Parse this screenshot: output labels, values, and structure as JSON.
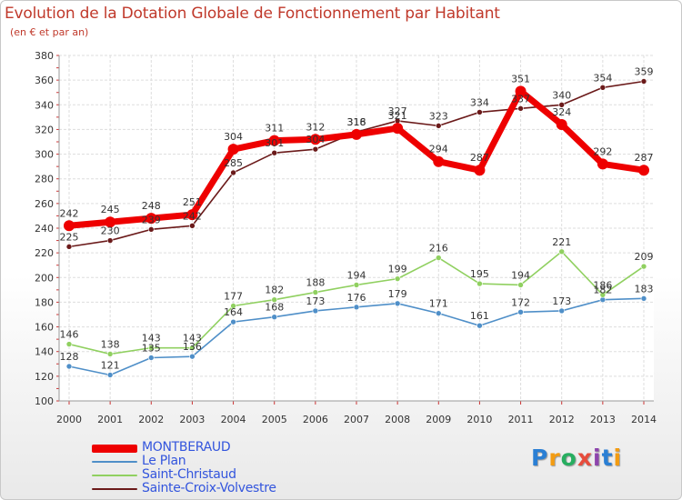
{
  "header": {
    "title": "Evolution de la Dotation Globale de Fonctionnement par Habitant",
    "subtitle": "(en € et par an)"
  },
  "logo": {
    "text": "Proxiti",
    "letters": [
      "P",
      "r",
      "o",
      "x",
      "i",
      "t",
      "i"
    ],
    "colors": [
      "#2a7fd4",
      "#f39c12",
      "#27ae60",
      "#e74c3c",
      "#8e44ad",
      "#2a7fd4",
      "#f39c12"
    ]
  },
  "chart_data": {
    "type": "line",
    "title": "Evolution de la Dotation Globale de Fonctionnement par Habitant",
    "subtitle": "(en € et par an)",
    "xlabel": "",
    "ylabel": "",
    "categories": [
      "2000",
      "2001",
      "2002",
      "2003",
      "2004",
      "2005",
      "2006",
      "2007",
      "2008",
      "2009",
      "2010",
      "2011",
      "2012",
      "2013",
      "2014"
    ],
    "ylim": [
      100,
      380
    ],
    "yticks": [
      100,
      120,
      140,
      160,
      180,
      200,
      220,
      240,
      260,
      280,
      300,
      320,
      340,
      360,
      380
    ],
    "grid": true,
    "legend_position": "bottom-left",
    "series": [
      {
        "name": "MONTBERAUD",
        "color": "#ee0000",
        "values": [
          242,
          245,
          248,
          251,
          304,
          311,
          312,
          316,
          321,
          294,
          287,
          351,
          324,
          292,
          287
        ]
      },
      {
        "name": "Le Plan",
        "color": "#4f8fc8",
        "values": [
          128,
          121,
          135,
          136,
          164,
          168,
          173,
          176,
          179,
          171,
          161,
          172,
          173,
          182,
          183
        ]
      },
      {
        "name": "Saint-Christaud",
        "color": "#90d060",
        "values": [
          146,
          138,
          143,
          143,
          177,
          182,
          188,
          194,
          199,
          216,
          195,
          194,
          221,
          186,
          209
        ]
      },
      {
        "name": "Sainte-Croix-Volvestre",
        "color": "#6b1a1a",
        "values": [
          225,
          230,
          239,
          242,
          285,
          301,
          304,
          318,
          327,
          323,
          334,
          337,
          340,
          354,
          359
        ]
      }
    ]
  }
}
